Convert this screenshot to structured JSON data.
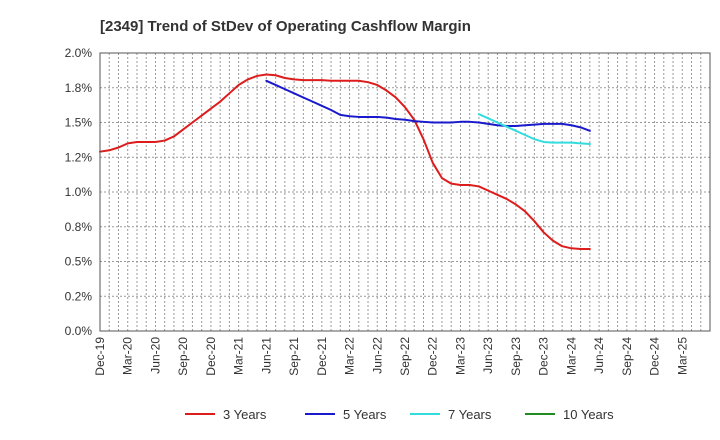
{
  "chart_data": {
    "type": "line",
    "title": "[2349]  Trend of StDev of Operating Cashflow Margin",
    "xlabel": "",
    "ylabel": "",
    "y_tick_labels": [
      "0.0%",
      "0.2%",
      "0.5%",
      "0.8%",
      "1.0%",
      "1.2%",
      "1.5%",
      "1.8%",
      "2.0%"
    ],
    "ylim": [
      0,
      2.0
    ],
    "x_tick_labels": [
      "Dec-19",
      "Mar-20",
      "Jun-20",
      "Sep-20",
      "Dec-20",
      "Mar-21",
      "Jun-21",
      "Sep-21",
      "Dec-21",
      "Mar-22",
      "Jun-22",
      "Sep-22",
      "Dec-22",
      "Mar-23",
      "Jun-23",
      "Sep-23",
      "Dec-23",
      "Mar-24",
      "Jun-24",
      "Sep-24",
      "Dec-24",
      "Mar-25"
    ],
    "grid": true,
    "legend_position": "bottom",
    "colors": {
      "3 Years": "#dd1c1c",
      "5 Years": "#1a1acc",
      "7 Years": "#33dddd",
      "10 Years": "#228b22"
    },
    "series": [
      {
        "name": "3 Years",
        "points": [
          [
            0,
            1.29
          ],
          [
            1,
            1.3
          ],
          [
            2,
            1.32
          ],
          [
            3,
            1.35
          ],
          [
            4,
            1.36
          ],
          [
            5,
            1.36
          ],
          [
            6,
            1.36
          ],
          [
            7,
            1.37
          ],
          [
            8,
            1.4
          ],
          [
            9,
            1.45
          ],
          [
            10,
            1.5
          ],
          [
            11,
            1.55
          ],
          [
            12,
            1.6
          ],
          [
            13,
            1.65
          ],
          [
            14,
            1.71
          ],
          [
            15,
            1.77
          ],
          [
            16,
            1.81
          ],
          [
            17,
            1.835
          ],
          [
            18,
            1.845
          ],
          [
            19,
            1.84
          ],
          [
            20,
            1.82
          ],
          [
            21,
            1.81
          ],
          [
            22,
            1.805
          ],
          [
            23,
            1.805
          ],
          [
            24,
            1.805
          ],
          [
            25,
            1.8
          ],
          [
            26,
            1.8
          ],
          [
            27,
            1.8
          ],
          [
            28,
            1.8
          ],
          [
            29,
            1.79
          ],
          [
            30,
            1.77
          ],
          [
            31,
            1.73
          ],
          [
            32,
            1.68
          ],
          [
            33,
            1.61
          ],
          [
            34,
            1.52
          ],
          [
            35,
            1.38
          ],
          [
            36,
            1.21
          ],
          [
            37,
            1.1
          ],
          [
            38,
            1.06
          ],
          [
            39,
            1.05
          ],
          [
            40,
            1.05
          ],
          [
            41,
            1.04
          ],
          [
            42,
            1.01
          ],
          [
            43,
            0.98
          ],
          [
            44,
            0.95
          ],
          [
            45,
            0.91
          ],
          [
            46,
            0.86
          ],
          [
            47,
            0.79
          ],
          [
            48,
            0.71
          ],
          [
            49,
            0.65
          ],
          [
            50,
            0.61
          ],
          [
            51,
            0.595
          ],
          [
            52,
            0.59
          ],
          [
            53,
            0.59
          ]
        ]
      },
      {
        "name": "5 Years",
        "points": [
          [
            18,
            1.8
          ],
          [
            19,
            1.77
          ],
          [
            20,
            1.74
          ],
          [
            21,
            1.71
          ],
          [
            22,
            1.68
          ],
          [
            23,
            1.65
          ],
          [
            24,
            1.62
          ],
          [
            25,
            1.59
          ],
          [
            26,
            1.555
          ],
          [
            27,
            1.545
          ],
          [
            28,
            1.54
          ],
          [
            29,
            1.54
          ],
          [
            30,
            1.54
          ],
          [
            31,
            1.535
          ],
          [
            32,
            1.525
          ],
          [
            33,
            1.52
          ],
          [
            34,
            1.51
          ],
          [
            35,
            1.505
          ],
          [
            36,
            1.5
          ],
          [
            37,
            1.5
          ],
          [
            38,
            1.5
          ],
          [
            39,
            1.505
          ],
          [
            40,
            1.505
          ],
          [
            41,
            1.5
          ],
          [
            42,
            1.49
          ],
          [
            43,
            1.48
          ],
          [
            44,
            1.475
          ],
          [
            45,
            1.475
          ],
          [
            46,
            1.48
          ],
          [
            47,
            1.485
          ],
          [
            48,
            1.49
          ],
          [
            49,
            1.49
          ],
          [
            50,
            1.49
          ],
          [
            51,
            1.48
          ],
          [
            52,
            1.465
          ],
          [
            53,
            1.44
          ]
        ]
      },
      {
        "name": "7 Years",
        "points": [
          [
            41,
            1.56
          ],
          [
            42,
            1.53
          ],
          [
            43,
            1.5
          ],
          [
            44,
            1.47
          ],
          [
            45,
            1.44
          ],
          [
            46,
            1.41
          ],
          [
            47,
            1.38
          ],
          [
            48,
            1.36
          ],
          [
            49,
            1.355
          ],
          [
            50,
            1.355
          ],
          [
            51,
            1.355
          ],
          [
            52,
            1.35
          ],
          [
            53,
            1.345
          ]
        ]
      },
      {
        "name": "10 Years",
        "points": []
      }
    ]
  }
}
